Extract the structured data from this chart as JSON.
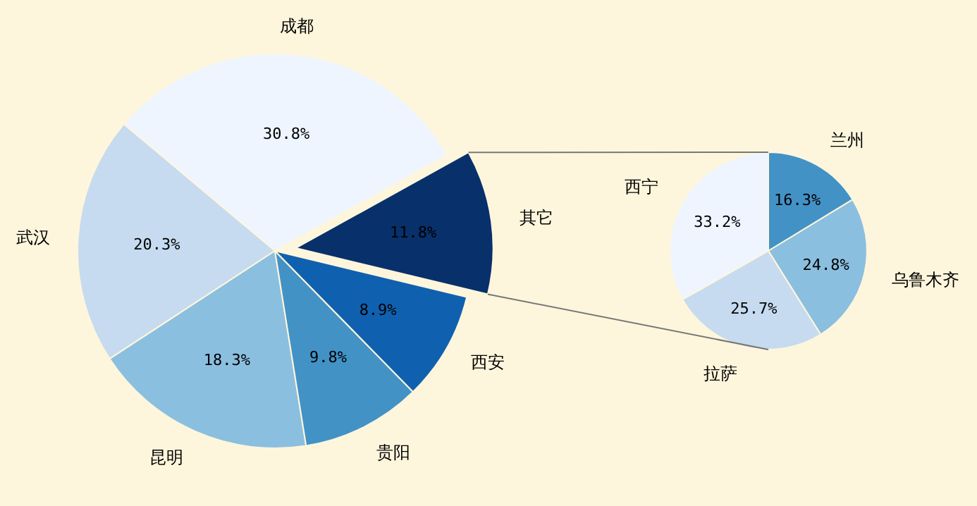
{
  "chart_data": [
    {
      "type": "pie",
      "categories": [
        "成都",
        "武汉",
        "昆明",
        "贵阳",
        "西安",
        "其它"
      ],
      "values": [
        30.8,
        20.3,
        18.3,
        9.8,
        8.9,
        11.8
      ],
      "value_labels": [
        "30.8%",
        "20.3%",
        "18.3%",
        "9.8%",
        "8.9%",
        "11.8%"
      ],
      "colors": [
        "#eef5ff",
        "#c6dbef",
        "#8bbfdf",
        "#4292c6",
        "#1060b0",
        "#08306b"
      ]
    },
    {
      "type": "pie",
      "categories": [
        "兰州",
        "乌鲁木齐",
        "拉萨",
        "西宁"
      ],
      "values": [
        16.3,
        24.8,
        25.7,
        33.2
      ],
      "value_labels": [
        "16.3%",
        "24.8%",
        "25.7%",
        "33.2%"
      ],
      "colors": [
        "#4292c6",
        "#8bbfdf",
        "#c6dbef",
        "#eef5ff"
      ]
    }
  ]
}
